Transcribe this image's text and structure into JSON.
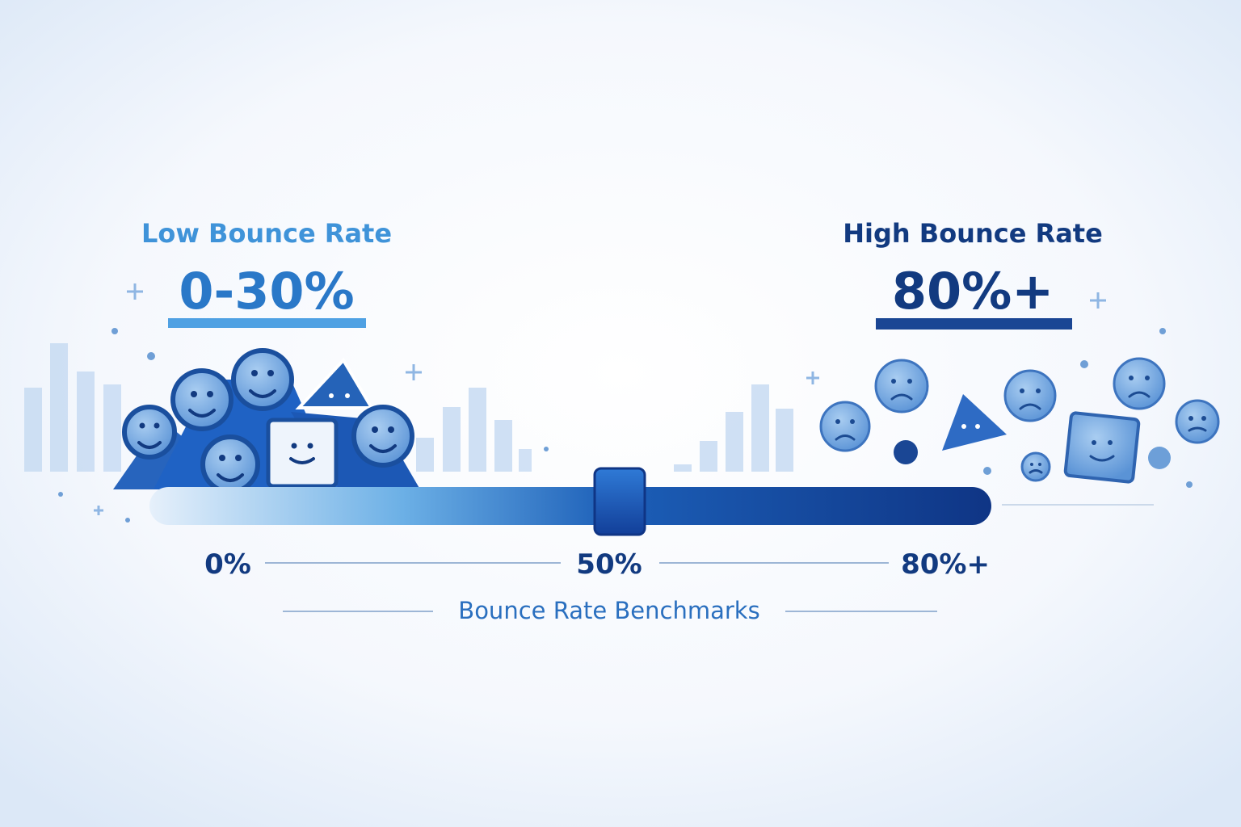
{
  "left": {
    "title": "Low Bounce Rate",
    "range": "0-30%"
  },
  "right": {
    "title": "High Bounce Rate",
    "range": "80%+"
  },
  "scale": {
    "labels": [
      "0%",
      "50%",
      "80%+"
    ],
    "caption": "Bounce Rate Benchmarks"
  }
}
